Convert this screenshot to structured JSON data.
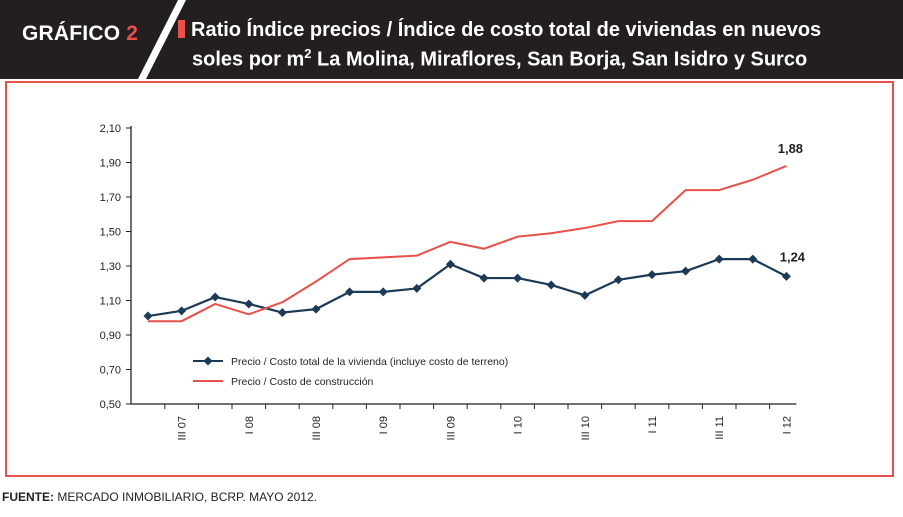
{
  "header": {
    "label_prefix": "GRÁFICO",
    "label_number": "2",
    "title_line1": "Ratio Índice precios / Índice de costo total de viviendas en nuevos",
    "title_line2_before": "soles por m",
    "title_sup": "2",
    "title_line2_after": " La Molina, Miraflores, San Borja, San Isidro y Surco"
  },
  "chart_data": {
    "type": "line",
    "ylim": [
      0.5,
      2.1
    ],
    "y_ticks": [
      "2,10",
      "1,90",
      "1,70",
      "1,50",
      "1,30",
      "1,10",
      "0,90",
      "0,70",
      "0,50"
    ],
    "x_tick_labels": [
      "III 07",
      "I 08",
      "III 08",
      "I 09",
      "III 09",
      "I 10",
      "III 10",
      "I 11",
      "III 11",
      "I 12"
    ],
    "n_points": 20,
    "series": [
      {
        "name": "Precio / Costo total de la vivienda (incluye costo de terreno)",
        "color": "#1b3a57",
        "marker": "diamond",
        "values": [
          1.01,
          1.04,
          1.12,
          1.08,
          1.03,
          1.05,
          1.15,
          1.15,
          1.17,
          1.31,
          1.23,
          1.23,
          1.19,
          1.13,
          1.22,
          1.25,
          1.27,
          1.34,
          1.34,
          1.24
        ],
        "end_label": "1,24"
      },
      {
        "name": "Precio / Costo de construcción",
        "color": "#e8514a",
        "marker": "none",
        "values": [
          0.98,
          0.98,
          1.08,
          1.02,
          1.09,
          1.21,
          1.34,
          1.35,
          1.36,
          1.44,
          1.4,
          1.47,
          1.49,
          1.52,
          1.56,
          1.56,
          1.74,
          1.74,
          1.8,
          1.88
        ],
        "end_label": "1,88"
      }
    ],
    "legend_position": "bottom-left"
  },
  "source": {
    "label": "FUENTE:",
    "text": " MERCADO INMOBILIARIO, BCRP. MAYO 2012."
  }
}
